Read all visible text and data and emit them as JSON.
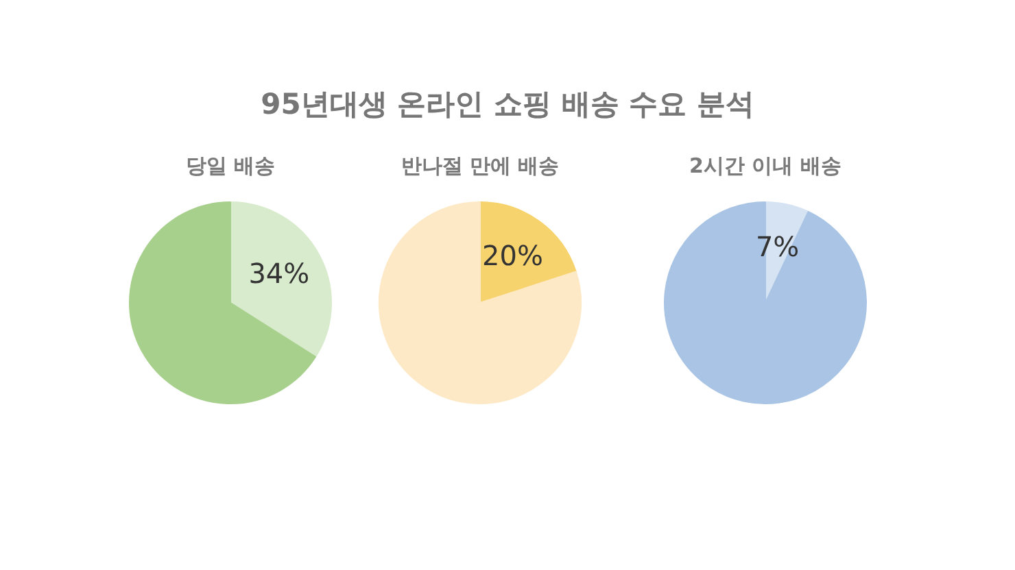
{
  "chart_data": [
    {
      "type": "other",
      "title": "95년대생 온라인 쇼핑 배송 수요 분석"
    },
    {
      "type": "pie",
      "title": "당일 배송",
      "categories": [
        null,
        null
      ],
      "values": [
        34,
        66
      ],
      "colors": [
        "#d9ebcd",
        "#a8d08d"
      ],
      "value_labels": [
        "34%",
        null
      ]
    },
    {
      "type": "pie",
      "title": "반나절 만에 배송",
      "categories": [
        null,
        null
      ],
      "values": [
        20,
        80
      ],
      "colors": [
        "#f7d36d",
        "#fde9c6"
      ],
      "value_labels": [
        "20%",
        null
      ]
    },
    {
      "type": "pie",
      "title": "2시간 이내 배송",
      "categories": [
        null,
        null
      ],
      "values": [
        7,
        93
      ],
      "colors": [
        "#d6e3f3",
        "#a9c4e4"
      ],
      "value_labels": [
        "7%",
        null
      ]
    }
  ]
}
